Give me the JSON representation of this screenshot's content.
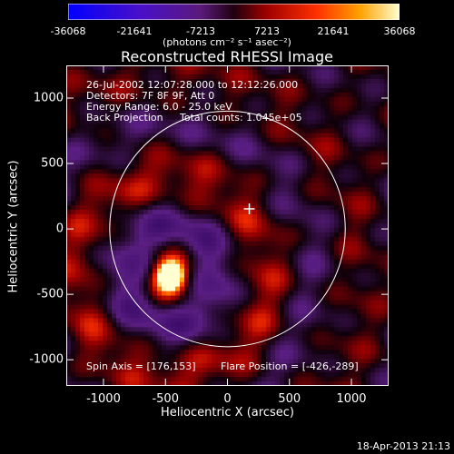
{
  "colorbar": {
    "ticks": [
      "-36068",
      "-21641",
      "-7213",
      "7213",
      "21641",
      "36068"
    ],
    "range": [
      -36068,
      36068
    ],
    "units": "(photons cm⁻² s⁻¹ asec⁻²)"
  },
  "chart_data": {
    "type": "heatmap",
    "title": "Reconstructed RHESSI Image",
    "xlabel": "Heliocentric X (arcsec)",
    "ylabel": "Heliocentric Y (arcsec)",
    "xlim": [
      -1300,
      1300
    ],
    "ylim": [
      -1200,
      1250
    ],
    "xticks": [
      -1000,
      -500,
      0,
      500,
      1000
    ],
    "yticks": [
      1000,
      500,
      0,
      -500,
      -1000
    ],
    "info_lines": [
      "26-Jul-2002 12:07:28.000 to 12:12:26.000",
      "Detectors: 7F 8F 9F, Att 0",
      "Energy Range: 6.0 - 25.0 keV"
    ],
    "back_projection": "Back Projection",
    "total_counts": "Total counts: 1.045e+05",
    "spin_axis": "Spin Axis = [176,153]",
    "flare_position": "Flare Position = [-426,-289]",
    "solar_disk_radius_arcsec": 950,
    "marker_position": [
      176,
      153
    ],
    "peak_position": [
      -460,
      -360
    ]
  },
  "footer": {
    "timestamp": "18-Apr-2013 21:13"
  }
}
